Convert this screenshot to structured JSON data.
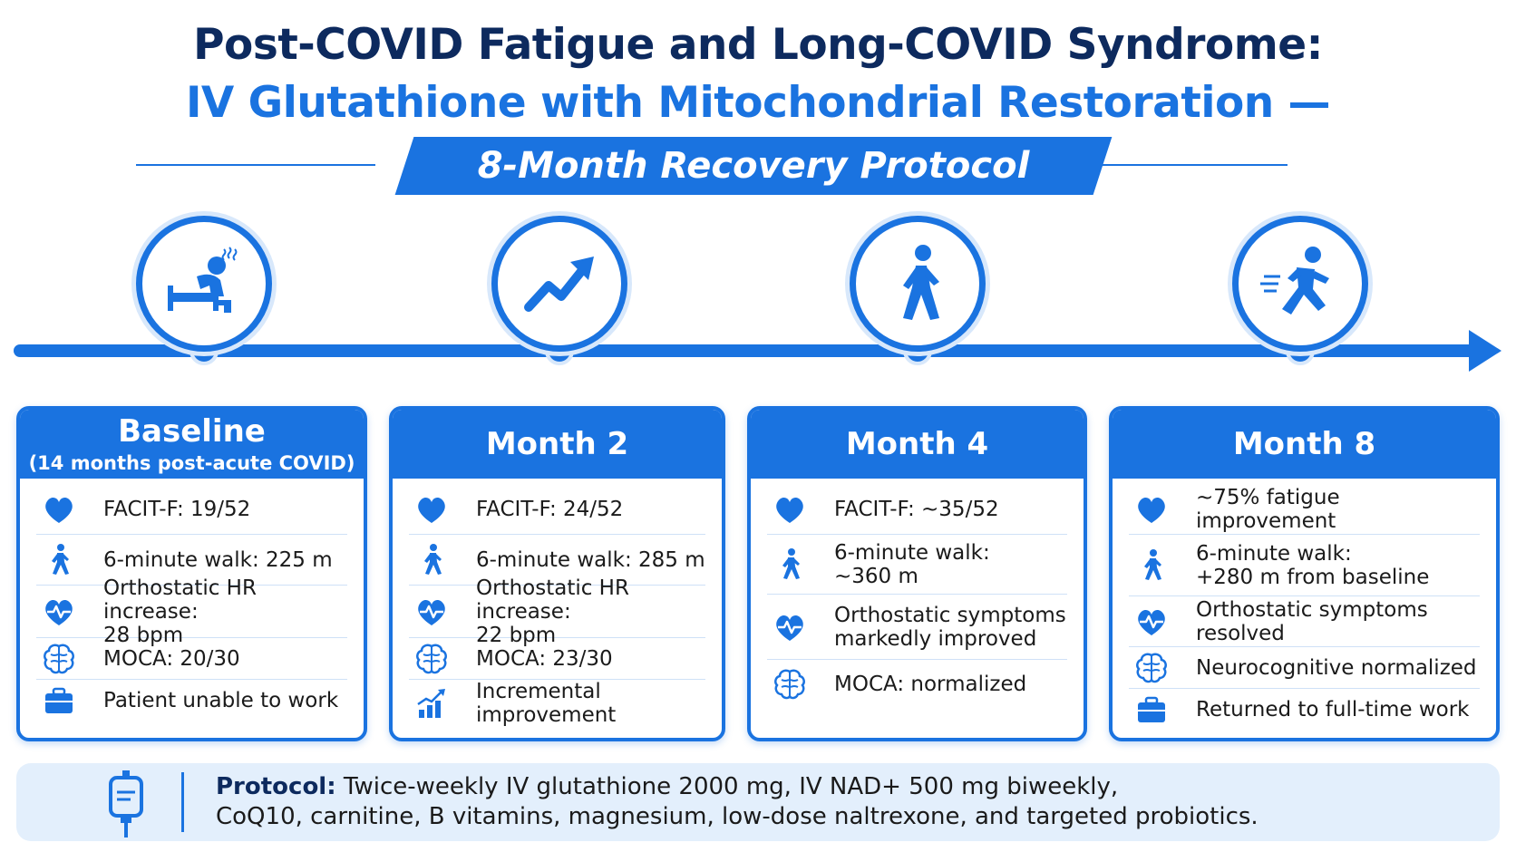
{
  "title_line1": "Post-COVID Fatigue and Long-COVID Syndrome:",
  "title_line2": "IV Glutathione with Mitochondrial Restoration —",
  "banner": "8-Month Recovery Protocol",
  "colors": {
    "primary": "#1a73e0",
    "navy": "#0d2a5e",
    "footer_bg": "#e3effc",
    "divider": "#cfe1f7"
  },
  "milestones": [
    {
      "icon": "fatigued-person-in-bed-icon"
    },
    {
      "icon": "upward-trend-arrow-icon"
    },
    {
      "icon": "walking-person-icon"
    },
    {
      "icon": "running-person-icon"
    }
  ],
  "cards": [
    {
      "title": "Baseline",
      "subtitle": "(14 months post-acute COVID)",
      "items": [
        {
          "icon": "heart-icon",
          "text": "FACIT-F: 19/52"
        },
        {
          "icon": "walking-person-icon",
          "text": "6-minute walk: 225 m"
        },
        {
          "icon": "heart-pulse-icon",
          "text": "Orthostatic HR increase:\n28 bpm"
        },
        {
          "icon": "brain-icon",
          "text": "MOCA: 20/30"
        },
        {
          "icon": "briefcase-icon",
          "text": "Patient unable to work"
        }
      ]
    },
    {
      "title": "Month 2",
      "items": [
        {
          "icon": "heart-icon",
          "text": "FACIT-F: 24/52"
        },
        {
          "icon": "walking-person-icon",
          "text": "6-minute walk: 285 m"
        },
        {
          "icon": "heart-pulse-icon",
          "text": "Orthostatic HR increase:\n22 bpm"
        },
        {
          "icon": "brain-icon",
          "text": "MOCA: 23/30"
        },
        {
          "icon": "bar-chart-up-icon",
          "text": "Incremental improvement"
        }
      ]
    },
    {
      "title": "Month 4",
      "items": [
        {
          "icon": "heart-icon",
          "text": "FACIT-F: ~35/52"
        },
        {
          "icon": "walking-person-icon",
          "text": "6-minute walk:\n~360 m"
        },
        {
          "icon": "heart-pulse-icon",
          "text": "Orthostatic symptoms\nmarkedly improved"
        },
        {
          "icon": "brain-icon",
          "text": "MOCA: normalized"
        }
      ]
    },
    {
      "title": "Month 8",
      "items": [
        {
          "icon": "heart-icon",
          "text": "~75% fatigue improvement"
        },
        {
          "icon": "walking-person-icon",
          "text": "6-minute walk:\n+280 m from baseline"
        },
        {
          "icon": "heart-pulse-icon",
          "text": "Orthostatic symptoms\nresolved"
        },
        {
          "icon": "brain-icon",
          "text": "Neurocognitive normalized"
        },
        {
          "icon": "briefcase-icon",
          "text": "Returned to full-time work"
        }
      ]
    }
  ],
  "footer": {
    "icon": "iv-bag-icon",
    "label": "Protocol:",
    "line1": "Twice-weekly IV glutathione 2000 mg, IV NAD+ 500 mg biweekly,",
    "line2": "CoQ10, carnitine, B vitamins, magnesium, low-dose naltrexone, and targeted probiotics."
  }
}
